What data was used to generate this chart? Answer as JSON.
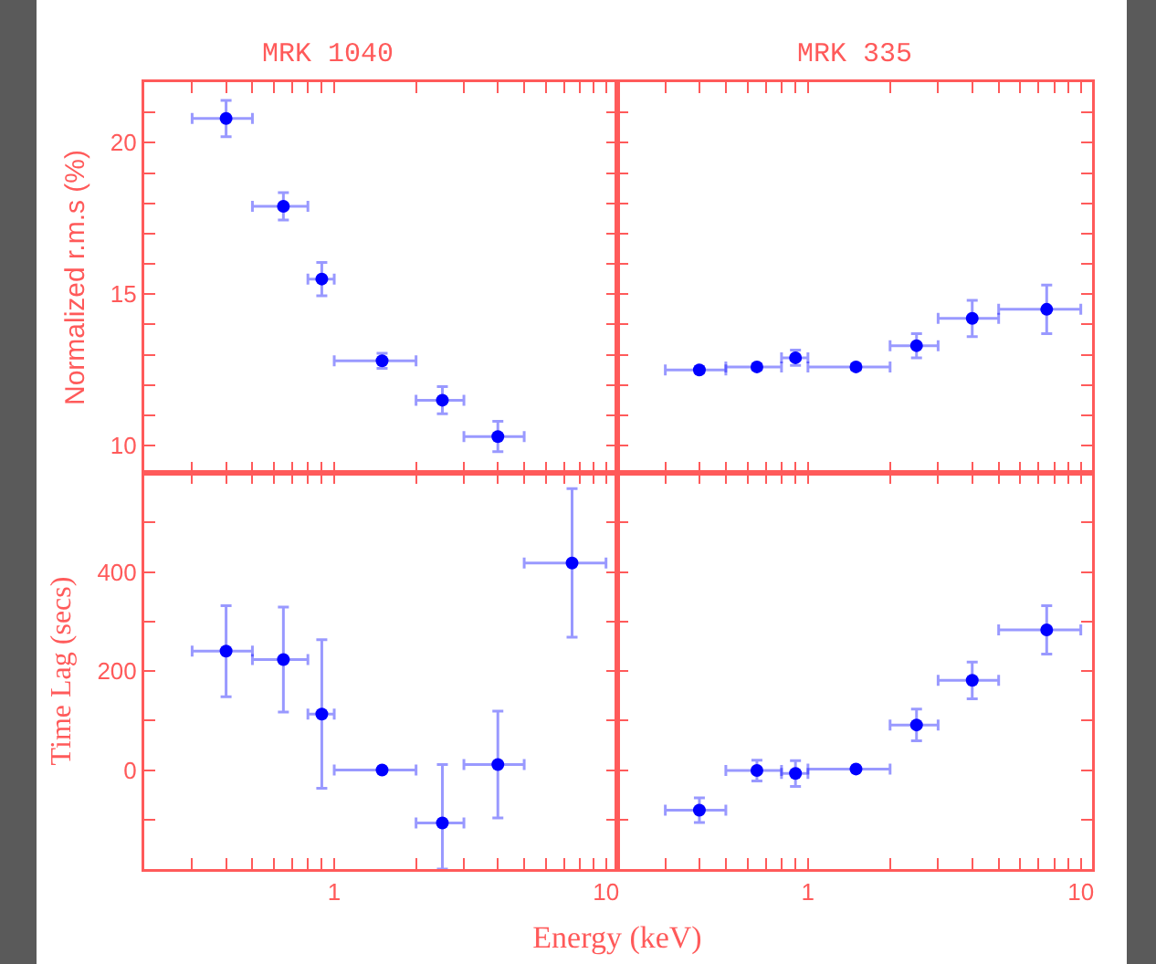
{
  "chart_data": [
    {
      "type": "scatter",
      "title": "MRK 1040",
      "ylabel": "Normalized r.m.s (%)",
      "log": "x",
      "marker": "circle",
      "tick_labels": "y",
      "xlim": [
        0.2,
        11
      ],
      "ylim": [
        9.1,
        22
      ],
      "xticks": [
        {
          "value": 0.3,
          "label": null
        },
        {
          "value": 0.4,
          "label": null
        },
        {
          "value": 0.5,
          "label": null
        },
        {
          "value": 0.6,
          "label": null
        },
        {
          "value": 0.7,
          "label": null
        },
        {
          "value": 0.8,
          "label": null
        },
        {
          "value": 0.9,
          "label": null
        },
        {
          "value": 1,
          "label": null
        },
        {
          "value": 2,
          "label": null
        },
        {
          "value": 3,
          "label": null
        },
        {
          "value": 4,
          "label": null
        },
        {
          "value": 5,
          "label": null
        },
        {
          "value": 6,
          "label": null
        },
        {
          "value": 7,
          "label": null
        },
        {
          "value": 8,
          "label": null
        },
        {
          "value": 9,
          "label": null
        },
        {
          "value": 10,
          "label": null
        }
      ],
      "yticks": [
        10,
        {
          "value": 11,
          "label": null
        },
        {
          "value": 12,
          "label": null
        },
        {
          "value": 13,
          "label": null
        },
        {
          "value": 14,
          "label": null
        },
        15,
        {
          "value": 16,
          "label": null
        },
        {
          "value": 17,
          "label": null
        },
        {
          "value": 18,
          "label": null
        },
        {
          "value": 19,
          "label": null
        },
        20,
        {
          "value": 21,
          "label": null
        }
      ],
      "x": [
        0.4,
        0.65,
        0.9,
        1.5,
        2.5,
        4
      ],
      "series": [
        {
          "color": "#0000ff",
          "values": [
            20.8,
            17.9,
            15.5,
            12.8,
            11.5,
            10.3
          ],
          "errors": [
            0.6,
            0.45,
            0.55,
            0.25,
            0.45,
            0.5
          ],
          "xerrors": [
            [
              0.3,
              0.5
            ],
            [
              0.5,
              0.8
            ],
            [
              0.8,
              1
            ],
            [
              1,
              2
            ],
            [
              2,
              3
            ],
            [
              3,
              5
            ]
          ]
        }
      ]
    },
    {
      "type": "scatter",
      "title": "MRK 335",
      "log": "x",
      "marker": "circle",
      "tick_labels": false,
      "xlim": [
        0.2,
        11
      ],
      "ylim": [
        9.1,
        22
      ],
      "xticks": [
        {
          "value": 0.3,
          "label": null
        },
        {
          "value": 0.4,
          "label": null
        },
        {
          "value": 0.5,
          "label": null
        },
        {
          "value": 0.6,
          "label": null
        },
        {
          "value": 0.7,
          "label": null
        },
        {
          "value": 0.8,
          "label": null
        },
        {
          "value": 0.9,
          "label": null
        },
        {
          "value": 1,
          "label": null
        },
        {
          "value": 2,
          "label": null
        },
        {
          "value": 3,
          "label": null
        },
        {
          "value": 4,
          "label": null
        },
        {
          "value": 5,
          "label": null
        },
        {
          "value": 6,
          "label": null
        },
        {
          "value": 7,
          "label": null
        },
        {
          "value": 8,
          "label": null
        },
        {
          "value": 9,
          "label": null
        },
        {
          "value": 10,
          "label": null
        }
      ],
      "yticks": [
        {
          "value": 10,
          "label": null
        },
        {
          "value": 11,
          "label": null
        },
        {
          "value": 12,
          "label": null
        },
        {
          "value": 13,
          "label": null
        },
        {
          "value": 14,
          "label": null
        },
        {
          "value": 15,
          "label": null
        },
        {
          "value": 16,
          "label": null
        },
        {
          "value": 17,
          "label": null
        },
        {
          "value": 18,
          "label": null
        },
        {
          "value": 19,
          "label": null
        },
        {
          "value": 20,
          "label": null
        },
        {
          "value": 21,
          "label": null
        }
      ],
      "x": [
        0.4,
        0.65,
        0.9,
        1.5,
        2.5,
        4,
        7.5
      ],
      "series": [
        {
          "color": "#0000ff",
          "values": [
            12.5,
            12.6,
            12.9,
            12.6,
            13.3,
            14.2,
            14.5
          ],
          "errors": [
            0.1,
            0.1,
            0.25,
            0.1,
            0.4,
            0.6,
            0.8
          ],
          "xerrors": [
            [
              0.3,
              0.5
            ],
            [
              0.5,
              0.8
            ],
            [
              0.8,
              1
            ],
            [
              1,
              2
            ],
            [
              2,
              3
            ],
            [
              3,
              5
            ],
            [
              5,
              10
            ]
          ]
        }
      ]
    },
    {
      "type": "scatter",
      "ylabel": "Time Lag (secs)",
      "xlabel": "Energy (keV)",
      "log": "x",
      "marker": "circle",
      "xlim": [
        0.2,
        11
      ],
      "ylim": [
        -200,
        600
      ],
      "xticks": [
        {
          "value": 0.3,
          "label": null
        },
        {
          "value": 0.4,
          "label": null
        },
        {
          "value": 0.5,
          "label": null
        },
        {
          "value": 0.6,
          "label": null
        },
        {
          "value": 0.7,
          "label": null
        },
        {
          "value": 0.8,
          "label": null
        },
        {
          "value": 0.9,
          "label": null
        },
        {
          "value": 1,
          "label": "1"
        },
        {
          "value": 2,
          "label": null
        },
        {
          "value": 3,
          "label": null
        },
        {
          "value": 4,
          "label": null
        },
        {
          "value": 5,
          "label": null
        },
        {
          "value": 6,
          "label": null
        },
        {
          "value": 7,
          "label": null
        },
        {
          "value": 8,
          "label": null
        },
        {
          "value": 9,
          "label": null
        },
        {
          "value": 10,
          "label": "10"
        }
      ],
      "yticks": [
        {
          "value": -100,
          "label": null
        },
        0,
        {
          "value": 100,
          "label": null
        },
        200,
        {
          "value": 300,
          "label": null
        },
        400,
        {
          "value": 500,
          "label": null
        }
      ],
      "x": [
        0.4,
        0.65,
        0.9,
        1.5,
        2.5,
        4,
        7.5
      ],
      "series": [
        {
          "color": "#0000ff",
          "values": [
            240,
            223,
            113,
            0,
            -107,
            11,
            418
          ],
          "errors": [
            92,
            106,
            150,
            null,
            [
              -200,
              11
            ],
            108,
            150
          ],
          "xerrors": [
            [
              0.3,
              0.5
            ],
            [
              0.5,
              0.8
            ],
            [
              0.8,
              1
            ],
            [
              1,
              2
            ],
            [
              2,
              3
            ],
            [
              3,
              5
            ],
            [
              5,
              10
            ]
          ]
        }
      ]
    },
    {
      "type": "scatter",
      "log": "x",
      "marker": "circle",
      "tick_labels": "x",
      "xlim": [
        0.2,
        11
      ],
      "ylim": [
        -200,
        600
      ],
      "xticks": [
        {
          "value": 0.3,
          "label": null
        },
        {
          "value": 0.4,
          "label": null
        },
        {
          "value": 0.5,
          "label": null
        },
        {
          "value": 0.6,
          "label": null
        },
        {
          "value": 0.7,
          "label": null
        },
        {
          "value": 0.8,
          "label": null
        },
        {
          "value": 0.9,
          "label": null
        },
        {
          "value": 1,
          "label": "1"
        },
        {
          "value": 2,
          "label": null
        },
        {
          "value": 3,
          "label": null
        },
        {
          "value": 4,
          "label": null
        },
        {
          "value": 5,
          "label": null
        },
        {
          "value": 6,
          "label": null
        },
        {
          "value": 7,
          "label": null
        },
        {
          "value": 8,
          "label": null
        },
        {
          "value": 9,
          "label": null
        },
        {
          "value": 10,
          "label": "10"
        }
      ],
      "yticks": [
        {
          "value": -100,
          "label": null
        },
        {
          "value": 0,
          "label": null
        },
        {
          "value": 100,
          "label": null
        },
        {
          "value": 200,
          "label": null
        },
        {
          "value": 300,
          "label": null
        },
        {
          "value": 400,
          "label": null
        },
        {
          "value": 500,
          "label": null
        }
      ],
      "x": [
        0.4,
        0.65,
        0.9,
        1.5,
        2.5,
        4,
        7.5
      ],
      "series": [
        {
          "color": "#0000ff",
          "values": [
            -81,
            -1,
            -7,
            2,
            91,
            181,
            283
          ],
          "errors": [
            25,
            21,
            26,
            null,
            32,
            37,
            49
          ],
          "xerrors": [
            [
              0.3,
              0.5
            ],
            [
              0.5,
              0.8
            ],
            [
              0.8,
              1
            ],
            [
              1,
              2
            ],
            [
              2,
              3
            ],
            [
              3,
              5
            ],
            [
              5,
              10
            ]
          ]
        }
      ]
    }
  ]
}
